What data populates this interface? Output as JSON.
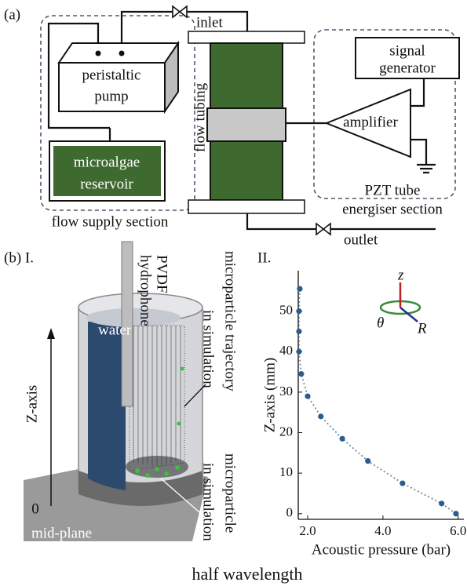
{
  "diagram": {
    "panel_a": "(a)",
    "inlet": "inlet",
    "outlet": "outlet",
    "pump": [
      "peristaltic",
      "pump"
    ],
    "reservoir": [
      "microalgae",
      "reservoir"
    ],
    "flow_supply_section": "flow supply section",
    "flow_tubing": "flow tubing",
    "signal_generator": [
      "signal",
      "generator"
    ],
    "amplifier": "amplifier",
    "energiser_section": [
      "PZT tube",
      "energiser section"
    ],
    "panel_b": "(b) I.",
    "panel_b2": "II.",
    "hydrophone": [
      "PVDF",
      "hydrophone"
    ],
    "trajectory": [
      "microparticle trajectory",
      "in simulation"
    ],
    "particle": [
      "microparticle",
      "in simulation"
    ],
    "water": "water",
    "z_axis": "Z-axis",
    "zero": "0",
    "mid_plane": "mid-plane",
    "half_wavelength": "half wavelength",
    "coords": [
      "z",
      "θ",
      "R"
    ]
  },
  "chart_data": {
    "type": "scatter",
    "x_label": "Acoustic pressure (bar)",
    "y_label": "Z-axis (mm)",
    "series": [
      {
        "color": "#2b5d8c",
        "x": [
          5.94,
          5.56,
          4.52,
          3.6,
          2.92,
          2.35,
          2.0,
          1.83,
          1.77,
          1.77,
          1.77,
          1.79
        ],
        "values": [
          0,
          2.5,
          7.5,
          13,
          18.5,
          24,
          29,
          34.5,
          40,
          45,
          50,
          55.5
        ]
      }
    ],
    "connect": "dotted",
    "xlim": [
      1.75,
      6.15
    ],
    "xticks": [
      {
        "value": 2,
        "label": "2.0"
      },
      {
        "value": 4,
        "label": "4.0"
      },
      {
        "value": 6,
        "label": "6.0"
      }
    ],
    "ylim": [
      -1.4,
      60
    ],
    "yticks": [
      0,
      10,
      20,
      30,
      40,
      50
    ]
  }
}
